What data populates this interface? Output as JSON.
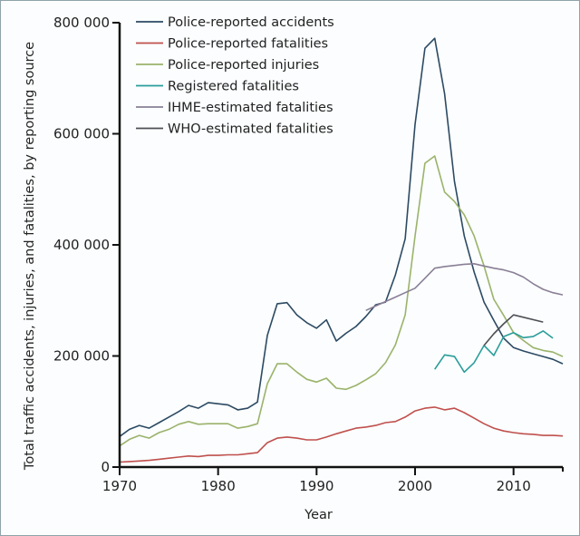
{
  "chart_data": {
    "type": "line",
    "title": "",
    "xlabel": "Year",
    "ylabel": "Total traffic accidents, injuries, and fatalities, by reporting source",
    "xlim": [
      1970,
      2015
    ],
    "ylim": [
      0,
      800000
    ],
    "xticks": [
      1970,
      1980,
      1990,
      2000,
      2010
    ],
    "xtick_labels": [
      "1970",
      "1980",
      "1990",
      "2000",
      "2010"
    ],
    "yticks": [
      0,
      200000,
      400000,
      600000,
      800000
    ],
    "ytick_labels": [
      "0",
      "200 000",
      "400 000",
      "600 000",
      "800 000"
    ],
    "grid": false,
    "legend_position": "top-left",
    "series": [
      {
        "name": "Police-reported accidents",
        "color": "#2c4a63",
        "x": [
          1970,
          1971,
          1972,
          1973,
          1974,
          1975,
          1976,
          1977,
          1978,
          1979,
          1980,
          1981,
          1982,
          1983,
          1984,
          1985,
          1986,
          1987,
          1988,
          1989,
          1990,
          1991,
          1992,
          1993,
          1994,
          1995,
          1996,
          1997,
          1998,
          1999,
          2000,
          2001,
          2002,
          2003,
          2004,
          2005,
          2006,
          2007,
          2008,
          2009,
          2010,
          2011,
          2012,
          2013,
          2014,
          2015
        ],
        "values": [
          55000,
          68000,
          75000,
          70000,
          80000,
          90000,
          100000,
          111000,
          106000,
          116000,
          114000,
          112000,
          103000,
          106000,
          117000,
          237000,
          294000,
          296000,
          274000,
          260000,
          250000,
          265000,
          227000,
          241000,
          253000,
          271000,
          292000,
          297000,
          346000,
          411000,
          617000,
          754000,
          772000,
          672000,
          514000,
          416000,
          351000,
          297000,
          264000,
          232000,
          215000,
          209000,
          204000,
          199000,
          194000,
          186000
        ]
      },
      {
        "name": "Police-reported fatalities",
        "color": "#c0504d",
        "x": [
          1970,
          1971,
          1972,
          1973,
          1974,
          1975,
          1976,
          1977,
          1978,
          1979,
          1980,
          1981,
          1982,
          1983,
          1984,
          1985,
          1986,
          1987,
          1988,
          1989,
          1990,
          1991,
          1992,
          1993,
          1994,
          1995,
          1996,
          1997,
          1998,
          1999,
          2000,
          2001,
          2002,
          2003,
          2004,
          2005,
          2006,
          2007,
          2008,
          2009,
          2010,
          2011,
          2012,
          2013,
          2014,
          2015
        ],
        "values": [
          9000,
          10000,
          11000,
          12000,
          14000,
          16000,
          18000,
          20000,
          19000,
          21000,
          21000,
          22000,
          22000,
          24000,
          26000,
          44000,
          52000,
          54000,
          52000,
          49000,
          49000,
          54000,
          60000,
          65000,
          70000,
          72000,
          75000,
          80000,
          82000,
          90000,
          101000,
          106000,
          108000,
          103000,
          106000,
          98000,
          88000,
          78000,
          70000,
          65000,
          62000,
          60000,
          59000,
          57000,
          57000,
          56000
        ]
      },
      {
        "name": "Police-reported injuries",
        "color": "#9bb36b",
        "x": [
          1970,
          1971,
          1972,
          1973,
          1974,
          1975,
          1976,
          1977,
          1978,
          1979,
          1980,
          1981,
          1982,
          1983,
          1984,
          1985,
          1986,
          1987,
          1988,
          1989,
          1990,
          1991,
          1992,
          1993,
          1994,
          1995,
          1996,
          1997,
          1998,
          1999,
          2000,
          2001,
          2002,
          2003,
          2004,
          2005,
          2006,
          2007,
          2008,
          2009,
          2010,
          2011,
          2012,
          2013,
          2014,
          2015
        ],
        "values": [
          38000,
          50000,
          57000,
          52000,
          62000,
          68000,
          77000,
          82000,
          77000,
          78000,
          78000,
          78000,
          70000,
          73000,
          78000,
          150000,
          186000,
          186000,
          171000,
          158000,
          153000,
          160000,
          142000,
          140000,
          147000,
          157000,
          168000,
          188000,
          220000,
          274000,
          416000,
          547000,
          560000,
          495000,
          478000,
          454000,
          416000,
          362000,
          302000,
          273000,
          242000,
          228000,
          215000,
          210000,
          207000,
          199000
        ]
      },
      {
        "name": "Registered fatalities",
        "color": "#2a9d9a",
        "x": [
          2002,
          2003,
          2004,
          2005,
          2006,
          2007,
          2008,
          2009,
          2010,
          2011,
          2012,
          2013,
          2014
        ],
        "values": [
          176000,
          202000,
          199000,
          171000,
          188000,
          219000,
          201000,
          235000,
          242000,
          233000,
          235000,
          245000,
          232000
        ]
      },
      {
        "name": "IHME-estimated fatalities",
        "color": "#8a7f96",
        "x": [
          1995,
          1996,
          1997,
          1998,
          1999,
          2000,
          2001,
          2002,
          2003,
          2004,
          2005,
          2006,
          2007,
          2008,
          2009,
          2010,
          2011,
          2012,
          2013,
          2014,
          2015
        ],
        "values": [
          282000,
          290000,
          298000,
          306000,
          314000,
          322000,
          340000,
          358000,
          361000,
          363000,
          365000,
          366000,
          362000,
          358000,
          355000,
          350000,
          342000,
          330000,
          320000,
          314000,
          310000
        ]
      },
      {
        "name": "WHO-estimated fatalities",
        "color": "#4d4f55",
        "x": [
          2007,
          2008,
          2009,
          2010,
          2013
        ],
        "values": [
          219000,
          240000,
          258000,
          274000,
          261000
        ]
      }
    ]
  }
}
